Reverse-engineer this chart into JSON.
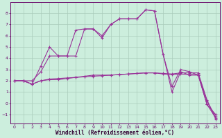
{
  "xlabel": "Windchill (Refroidissement éolien,°C)",
  "background_color": "#cceedd",
  "grid_color": "#aaccbb",
  "line_color": "#993399",
  "xlim": [
    -0.5,
    23.5
  ],
  "ylim": [
    -1.8,
    9.0
  ],
  "xticks": [
    0,
    1,
    2,
    3,
    4,
    5,
    6,
    7,
    8,
    9,
    10,
    11,
    12,
    13,
    14,
    15,
    16,
    17,
    18,
    19,
    20,
    21,
    22,
    23
  ],
  "yticks": [
    -1,
    0,
    1,
    2,
    3,
    4,
    5,
    6,
    7,
    8
  ],
  "series": [
    [
      2.0,
      2.0,
      1.7,
      3.3,
      5.0,
      4.2,
      4.2,
      6.5,
      6.6,
      6.6,
      5.8,
      7.0,
      7.5,
      7.5,
      7.5,
      8.3,
      8.2,
      4.3,
      1.0,
      2.8,
      2.5,
      2.5,
      -0.1,
      -1.3
    ],
    [
      2.0,
      2.0,
      2.0,
      2.8,
      4.2,
      4.2,
      4.2,
      4.2,
      6.6,
      6.6,
      6.0,
      7.0,
      7.5,
      7.5,
      7.5,
      8.3,
      8.2,
      4.3,
      1.5,
      3.0,
      2.8,
      2.5,
      -0.1,
      -1.0
    ],
    [
      2.0,
      2.0,
      1.7,
      2.0,
      2.15,
      2.2,
      2.25,
      2.3,
      2.4,
      2.5,
      2.5,
      2.5,
      2.55,
      2.6,
      2.65,
      2.7,
      2.7,
      2.65,
      2.6,
      2.7,
      2.7,
      2.7,
      0.3,
      -1.4
    ],
    [
      2.0,
      2.0,
      1.7,
      2.0,
      2.1,
      2.1,
      2.2,
      2.3,
      2.35,
      2.4,
      2.45,
      2.5,
      2.55,
      2.6,
      2.65,
      2.7,
      2.7,
      2.6,
      2.55,
      2.6,
      2.55,
      2.55,
      0.2,
      -1.2
    ]
  ]
}
